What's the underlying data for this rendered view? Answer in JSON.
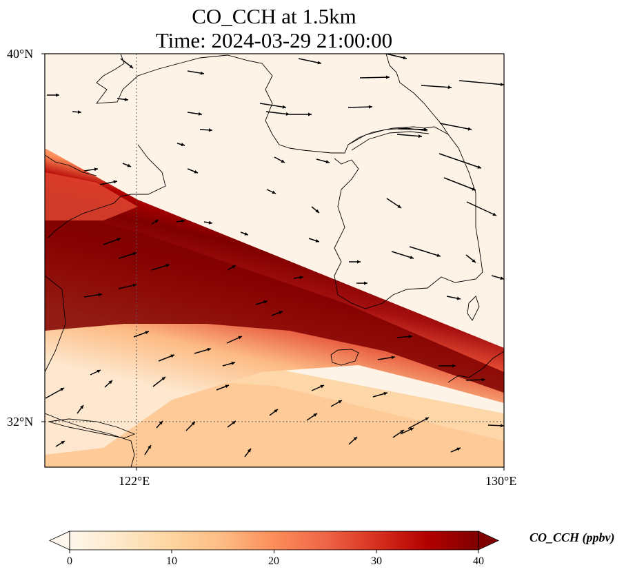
{
  "title_line1": "CO_CCH at 1.5km",
  "title_line2": "Time: 2024-03-29 21:00:00",
  "lat_labels": [
    "40°N",
    "32°N"
  ],
  "lon_labels": [
    "122°E",
    "130°E"
  ],
  "extent": {
    "lon_min": 120.4,
    "lon_max": 130.0,
    "lat_min": 31.0,
    "lat_max": 40.0
  },
  "gridlines": {
    "lon": 122,
    "lat": 32,
    "style": "dotted"
  },
  "colorbar": {
    "label": "CO_CCH (ppbv)",
    "ticks": [
      "0",
      "10",
      "20",
      "30",
      "40"
    ],
    "min": 0,
    "max": 40,
    "colormap": "OrRd",
    "extend": "both",
    "colors": [
      "#fff7ec",
      "#fee8c8",
      "#fdd49e",
      "#fdbb84",
      "#fc8d59",
      "#ef6548",
      "#d7301f",
      "#b30000",
      "#7f0000"
    ]
  },
  "plume": {
    "description_values": "high CO concentration band oriented northwest to southeast",
    "core_value_ppbv": 40,
    "edge_value_ppbv": 15
  },
  "wind_vectors": "arrows indicating wind direction, predominantly westerly to northwesterly"
}
